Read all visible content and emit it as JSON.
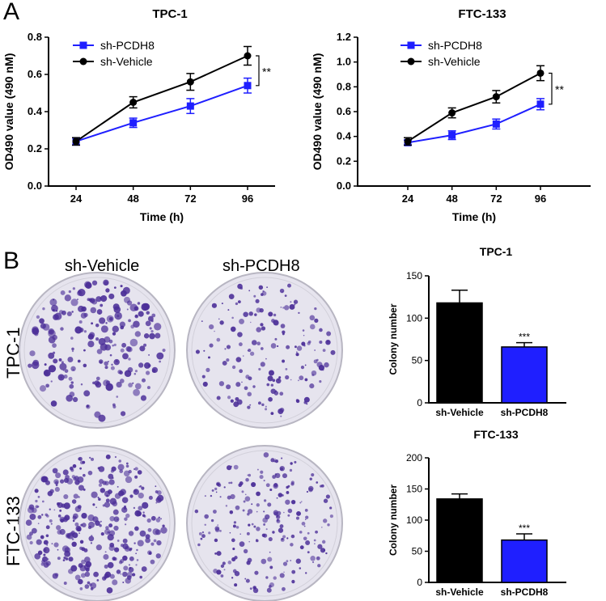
{
  "panels": {
    "a": "A",
    "b": "B"
  },
  "dish_columns": [
    "sh-Vehicle",
    "sh-PCDH8"
  ],
  "dish_rows": [
    "TPC-1",
    "FTC-133"
  ],
  "colors": {
    "sh_vehicle": "#000000",
    "sh_pcdh8": "#1f1fff",
    "dish_bg": "#e6e4ee",
    "colony": "#4b2e98"
  },
  "chart_data": [
    {
      "type": "line",
      "title": "TPC-1",
      "xlabel": "Time (h)",
      "ylabel": "OD490 value (490 nM)",
      "x": [
        24,
        48,
        72,
        96
      ],
      "ylim": [
        0,
        0.8
      ],
      "yticks": [
        "0.0",
        "0.2",
        "0.4",
        "0.6",
        "0.8"
      ],
      "series": [
        {
          "name": "sh-PCDH8",
          "values": [
            0.24,
            0.34,
            0.43,
            0.54
          ],
          "errors": [
            0.02,
            0.025,
            0.04,
            0.04
          ],
          "marker": "square",
          "color": "#1f1fff"
        },
        {
          "name": "sh-Vehicle",
          "values": [
            0.24,
            0.45,
            0.56,
            0.7
          ],
          "errors": [
            0.02,
            0.03,
            0.045,
            0.05
          ],
          "marker": "circle",
          "color": "#000000"
        }
      ],
      "significance": "**",
      "legend": "top-left"
    },
    {
      "type": "line",
      "title": "FTC-133",
      "xlabel": "Time (h)",
      "ylabel": "OD490 value (490 nM)",
      "x": [
        24,
        48,
        72,
        96
      ],
      "ylim": [
        0,
        1.2
      ],
      "yticks": [
        "0.0",
        "0.2",
        "0.4",
        "0.6",
        "0.8",
        "1.0",
        "1.2"
      ],
      "series": [
        {
          "name": "sh-PCDH8",
          "values": [
            0.35,
            0.41,
            0.5,
            0.66
          ],
          "errors": [
            0.02,
            0.035,
            0.04,
            0.045
          ],
          "marker": "square",
          "color": "#1f1fff"
        },
        {
          "name": "sh-Vehicle",
          "values": [
            0.36,
            0.59,
            0.72,
            0.91
          ],
          "errors": [
            0.03,
            0.04,
            0.05,
            0.06
          ],
          "marker": "circle",
          "color": "#000000"
        }
      ],
      "significance": "**",
      "legend": "top-left"
    },
    {
      "type": "bar",
      "title": "TPC-1",
      "ylabel": "Colony number",
      "categories": [
        "sh-Vehicle",
        "sh-PCDH8"
      ],
      "values": [
        118,
        66
      ],
      "errors": [
        15,
        5
      ],
      "colors": [
        "#000000",
        "#1f1fff"
      ],
      "ylim": [
        0,
        150
      ],
      "yticks": [
        "0",
        "50",
        "100",
        "150"
      ],
      "significance": "***"
    },
    {
      "type": "bar",
      "title": "FTC-133",
      "ylabel": "Colony number",
      "categories": [
        "sh-Vehicle",
        "sh-PCDH8"
      ],
      "values": [
        134,
        68
      ],
      "errors": [
        8,
        10
      ],
      "colors": [
        "#000000",
        "#1f1fff"
      ],
      "ylim": [
        0,
        200
      ],
      "yticks": [
        "0",
        "50",
        "100",
        "150",
        "200"
      ],
      "significance": "***"
    }
  ]
}
